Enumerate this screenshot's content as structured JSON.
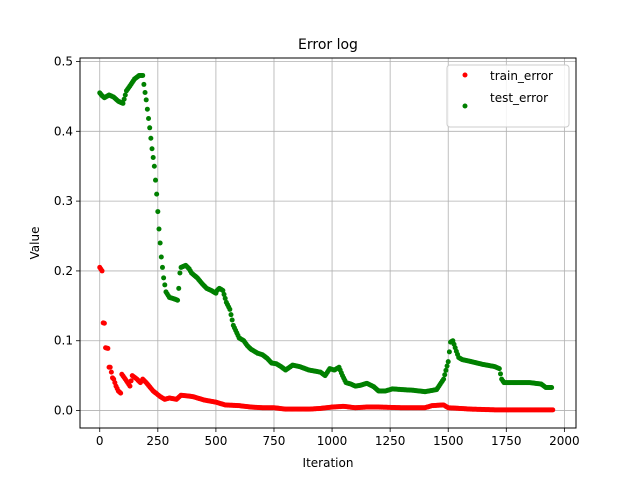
{
  "chart_data": {
    "type": "scatter",
    "title": "Error log",
    "xlabel": "Iteration",
    "ylabel": "Value",
    "xlim": [
      -85,
      2050
    ],
    "ylim": [
      -0.025,
      0.505
    ],
    "xticks": [
      0,
      250,
      500,
      750,
      1000,
      1250,
      1500,
      1750,
      2000
    ],
    "yticks": [
      0.0,
      0.1,
      0.2,
      0.3,
      0.4,
      0.5
    ],
    "xtick_labels": [
      "0",
      "250",
      "500",
      "750",
      "1000",
      "1250",
      "1500",
      "1750",
      "2000"
    ],
    "ytick_labels": [
      "0.0",
      "0.1",
      "0.2",
      "0.3",
      "0.4",
      "0.5"
    ],
    "grid": true,
    "legend_position": "top-right",
    "series": [
      {
        "name": "train_error",
        "color": "#ff0000",
        "keypoints": [
          [
            0,
            0.205
          ],
          [
            10,
            0.2
          ],
          [
            12,
            0.126
          ],
          [
            20,
            0.125
          ],
          [
            25,
            0.09
          ],
          [
            35,
            0.089
          ],
          [
            40,
            0.062
          ],
          [
            48,
            0.062
          ],
          [
            52,
            0.048
          ],
          [
            60,
            0.045
          ],
          [
            70,
            0.035
          ],
          [
            80,
            0.028
          ],
          [
            90,
            0.025
          ],
          [
            95,
            0.052
          ],
          [
            110,
            0.045
          ],
          [
            130,
            0.035
          ],
          [
            140,
            0.05
          ],
          [
            160,
            0.045
          ],
          [
            175,
            0.04
          ],
          [
            185,
            0.045
          ],
          [
            200,
            0.04
          ],
          [
            230,
            0.028
          ],
          [
            260,
            0.02
          ],
          [
            280,
            0.016
          ],
          [
            300,
            0.018
          ],
          [
            330,
            0.016
          ],
          [
            350,
            0.022
          ],
          [
            400,
            0.02
          ],
          [
            450,
            0.015
          ],
          [
            500,
            0.012
          ],
          [
            540,
            0.008
          ],
          [
            600,
            0.007
          ],
          [
            650,
            0.005
          ],
          [
            700,
            0.004
          ],
          [
            750,
            0.004
          ],
          [
            800,
            0.002
          ],
          [
            900,
            0.002
          ],
          [
            950,
            0.003
          ],
          [
            1000,
            0.005
          ],
          [
            1050,
            0.006
          ],
          [
            1100,
            0.004
          ],
          [
            1150,
            0.005
          ],
          [
            1200,
            0.005
          ],
          [
            1300,
            0.004
          ],
          [
            1400,
            0.004
          ],
          [
            1430,
            0.007
          ],
          [
            1480,
            0.008
          ],
          [
            1500,
            0.004
          ],
          [
            1550,
            0.003
          ],
          [
            1600,
            0.002
          ],
          [
            1700,
            0.001
          ],
          [
            1800,
            0.001
          ],
          [
            1950,
            0.001
          ]
        ]
      },
      {
        "name": "test_error",
        "color": "#008000",
        "keypoints": [
          [
            0,
            0.455
          ],
          [
            10,
            0.451
          ],
          [
            20,
            0.448
          ],
          [
            40,
            0.452
          ],
          [
            60,
            0.449
          ],
          [
            80,
            0.443
          ],
          [
            100,
            0.44
          ],
          [
            115,
            0.458
          ],
          [
            130,
            0.465
          ],
          [
            150,
            0.475
          ],
          [
            170,
            0.48
          ],
          [
            185,
            0.48
          ],
          [
            192,
            0.462
          ],
          [
            200,
            0.445
          ],
          [
            215,
            0.405
          ],
          [
            225,
            0.375
          ],
          [
            235,
            0.35
          ],
          [
            245,
            0.31
          ],
          [
            255,
            0.26
          ],
          [
            265,
            0.22
          ],
          [
            275,
            0.19
          ],
          [
            285,
            0.17
          ],
          [
            300,
            0.162
          ],
          [
            320,
            0.16
          ],
          [
            335,
            0.158
          ],
          [
            340,
            0.175
          ],
          [
            345,
            0.197
          ],
          [
            350,
            0.205
          ],
          [
            370,
            0.208
          ],
          [
            385,
            0.203
          ],
          [
            395,
            0.197
          ],
          [
            420,
            0.19
          ],
          [
            440,
            0.182
          ],
          [
            460,
            0.175
          ],
          [
            480,
            0.172
          ],
          [
            500,
            0.168
          ],
          [
            505,
            0.172
          ],
          [
            515,
            0.175
          ],
          [
            530,
            0.172
          ],
          [
            545,
            0.155
          ],
          [
            560,
            0.145
          ],
          [
            575,
            0.122
          ],
          [
            600,
            0.104
          ],
          [
            620,
            0.1
          ],
          [
            635,
            0.093
          ],
          [
            650,
            0.088
          ],
          [
            665,
            0.085
          ],
          [
            680,
            0.082
          ],
          [
            700,
            0.08
          ],
          [
            720,
            0.075
          ],
          [
            740,
            0.068
          ],
          [
            760,
            0.067
          ],
          [
            780,
            0.063
          ],
          [
            800,
            0.058
          ],
          [
            830,
            0.065
          ],
          [
            860,
            0.063
          ],
          [
            900,
            0.058
          ],
          [
            950,
            0.055
          ],
          [
            970,
            0.05
          ],
          [
            990,
            0.06
          ],
          [
            1010,
            0.058
          ],
          [
            1030,
            0.062
          ],
          [
            1045,
            0.05
          ],
          [
            1060,
            0.04
          ],
          [
            1080,
            0.038
          ],
          [
            1100,
            0.035
          ],
          [
            1120,
            0.036
          ],
          [
            1150,
            0.039
          ],
          [
            1180,
            0.034
          ],
          [
            1200,
            0.028
          ],
          [
            1230,
            0.028
          ],
          [
            1260,
            0.031
          ],
          [
            1300,
            0.03
          ],
          [
            1350,
            0.029
          ],
          [
            1400,
            0.027
          ],
          [
            1450,
            0.03
          ],
          [
            1480,
            0.045
          ],
          [
            1500,
            0.07
          ],
          [
            1510,
            0.098
          ],
          [
            1520,
            0.1
          ],
          [
            1535,
            0.085
          ],
          [
            1545,
            0.076
          ],
          [
            1560,
            0.073
          ],
          [
            1600,
            0.07
          ],
          [
            1650,
            0.066
          ],
          [
            1700,
            0.063
          ],
          [
            1720,
            0.06
          ],
          [
            1730,
            0.045
          ],
          [
            1740,
            0.04
          ],
          [
            1800,
            0.04
          ],
          [
            1850,
            0.04
          ],
          [
            1900,
            0.038
          ],
          [
            1920,
            0.033
          ],
          [
            1945,
            0.033
          ]
        ]
      }
    ]
  }
}
